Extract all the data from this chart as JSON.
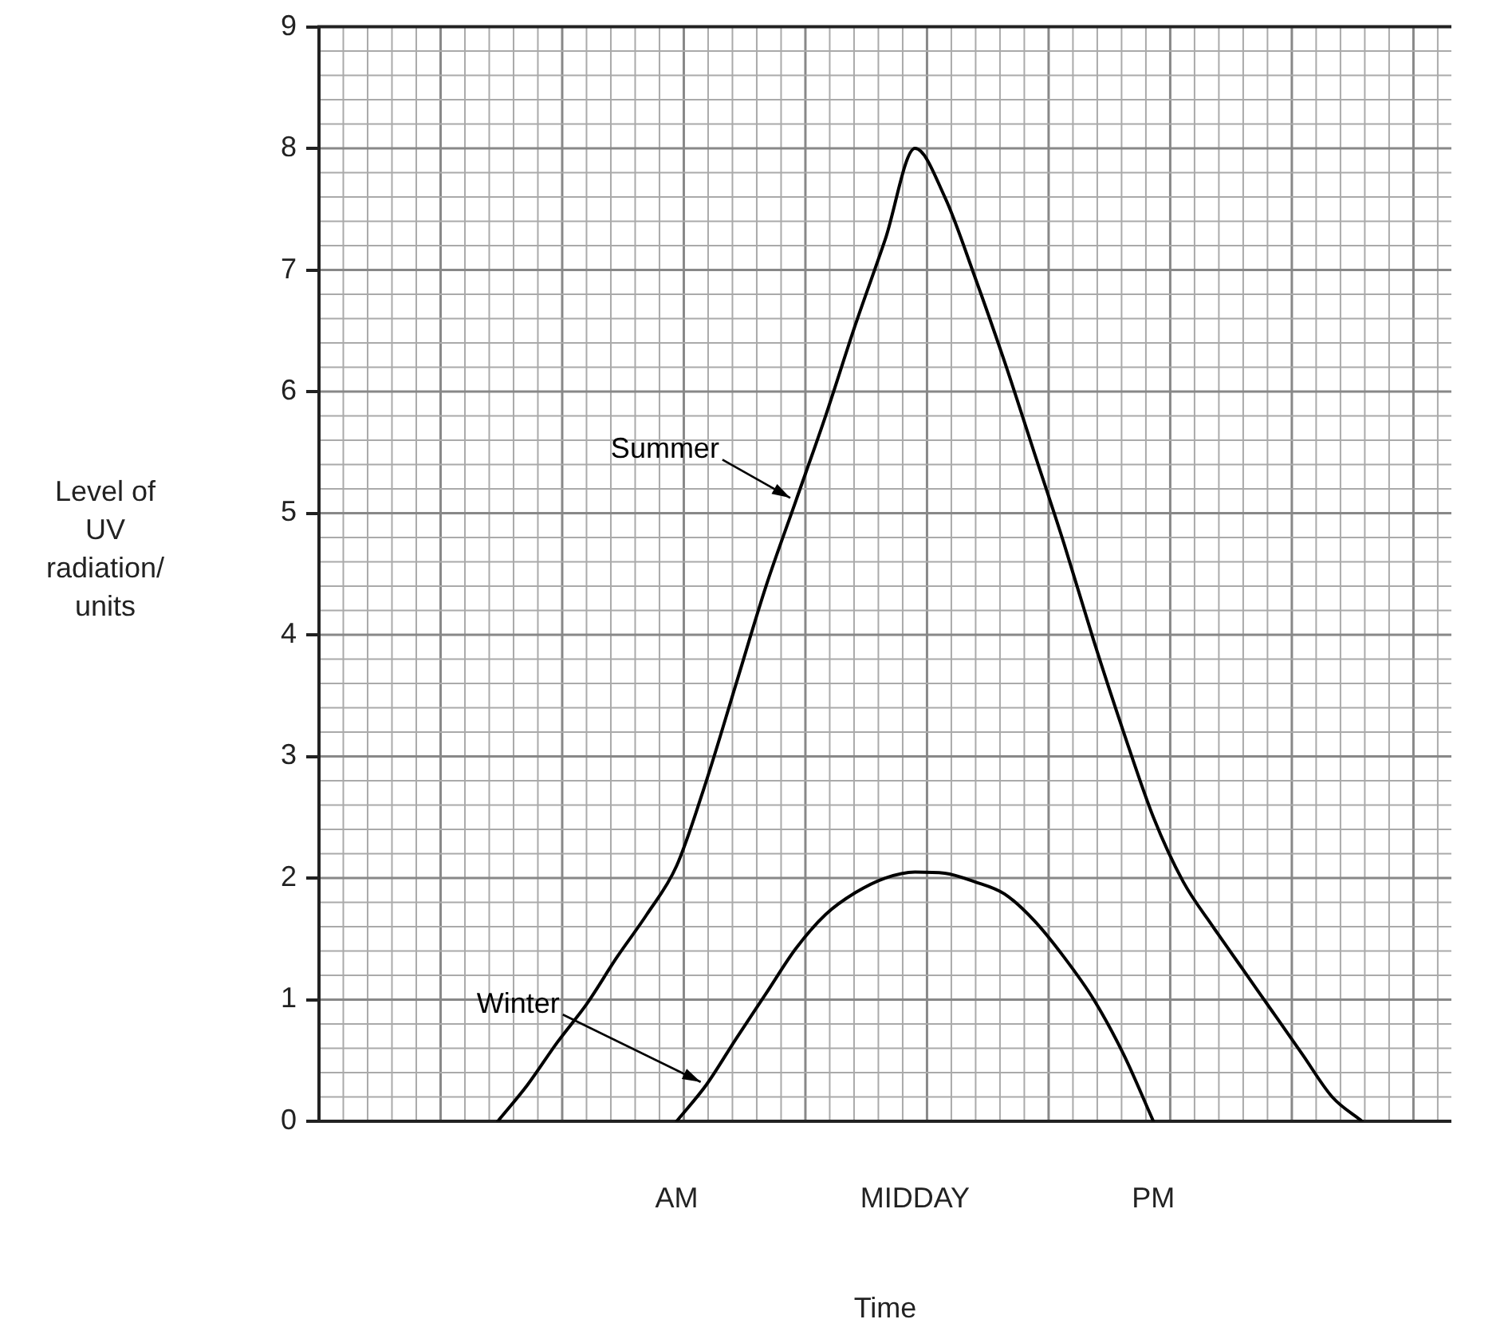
{
  "chart_data": {
    "type": "line",
    "xlabel": "Time",
    "ylabel": "Level of UV radiation/ units",
    "categories": [
      null,
      null,
      null,
      null,
      null,
      null,
      null,
      null,
      null,
      null,
      null,
      null,
      "AM",
      null,
      null,
      null,
      null,
      null,
      null,
      null,
      "MIDDAY",
      null,
      null,
      null,
      null,
      null,
      null,
      null,
      "PM",
      null,
      null,
      null,
      null,
      null,
      null,
      null,
      null,
      null,
      null
    ],
    "ylim": [
      0,
      9
    ],
    "yticks": [
      0,
      1,
      2,
      3,
      4,
      5,
      6,
      7,
      8,
      9
    ],
    "grid": true,
    "marker": "none",
    "line_style": "solid",
    "series": [
      {
        "name": "Summer",
        "color": "#000000",
        "values": [
          null,
          null,
          null,
          null,
          null,
          null,
          0,
          0.3,
          0.65,
          0.97,
          1.35,
          1.7,
          2.1,
          2.8,
          3.6,
          4.4,
          5.1,
          5.8,
          6.55,
          7.25,
          8.0,
          7.6,
          6.95,
          6.25,
          5.5,
          4.75,
          3.95,
          3.2,
          2.5,
          1.97,
          1.6,
          1.25,
          0.9,
          0.55,
          0.2,
          0,
          null,
          null,
          null
        ]
      },
      {
        "name": "Winter",
        "color": "#000000",
        "values": [
          null,
          null,
          null,
          null,
          null,
          null,
          null,
          null,
          null,
          null,
          null,
          null,
          0,
          0.3,
          0.68,
          1.05,
          1.42,
          1.7,
          1.88,
          2.0,
          2.05,
          2.04,
          1.97,
          1.87,
          1.65,
          1.35,
          1.0,
          0.55,
          0,
          null,
          null,
          null,
          null,
          null,
          null,
          null,
          null,
          null,
          null
        ]
      }
    ]
  }
}
